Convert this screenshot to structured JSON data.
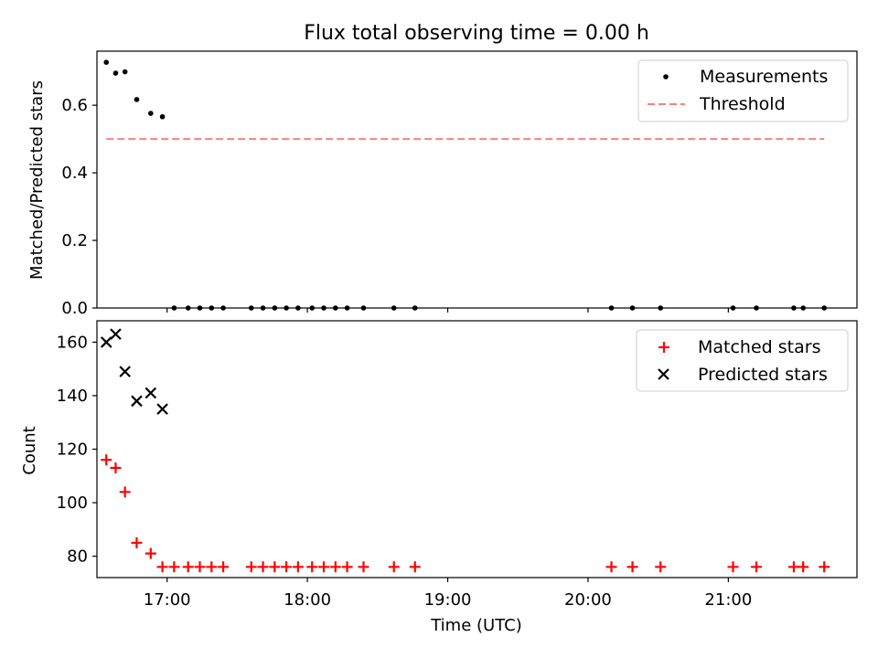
{
  "chart_data": [
    {
      "type": "scatter",
      "title": "Flux total observing time = 0.00 h",
      "xlabel": "",
      "ylabel": "Matched/Predicted stars",
      "xlim": [
        "16:30",
        "21:55"
      ],
      "ylim": [
        0.0,
        0.76
      ],
      "x_ticks": [
        "17:00",
        "18:00",
        "19:00",
        "20:00",
        "21:00"
      ],
      "y_ticks": [
        "0.0",
        "0.2",
        "0.4",
        "0.6"
      ],
      "legend_position": "top-right",
      "legend": [
        "Measurements",
        "Threshold"
      ],
      "series": [
        {
          "name": "Measurements",
          "color": "#000000",
          "marker": "dot",
          "x": [
            "16:34",
            "16:38",
            "16:42",
            "16:47",
            "16:53",
            "16:58",
            "17:03",
            "17:09",
            "17:14",
            "17:19",
            "17:24",
            "17:36",
            "17:41",
            "17:46",
            "17:51",
            "17:56",
            "18:02",
            "18:07",
            "18:12",
            "18:17",
            "18:24",
            "18:37",
            "18:46",
            "20:10",
            "20:19",
            "20:31",
            "21:02",
            "21:12",
            "21:28",
            "21:32",
            "21:41"
          ],
          "y": [
            0.727,
            0.695,
            0.699,
            0.617,
            0.576,
            0.566,
            0,
            0,
            0,
            0,
            0,
            0,
            0,
            0,
            0,
            0,
            0,
            0,
            0,
            0,
            0,
            0,
            0,
            0,
            0,
            0,
            0,
            0,
            0,
            0,
            0
          ]
        },
        {
          "name": "Threshold",
          "color": "#ff7f7f",
          "style": "dashed",
          "x": [
            "16:34",
            "21:41"
          ],
          "y": [
            0.5,
            0.5
          ]
        }
      ]
    },
    {
      "type": "scatter",
      "title": "",
      "xlabel": "Time (UTC)",
      "ylabel": "Count",
      "xlim": [
        "16:30",
        "21:55"
      ],
      "ylim": [
        72,
        168
      ],
      "x_ticks": [
        "17:00",
        "18:00",
        "19:00",
        "20:00",
        "21:00"
      ],
      "y_ticks": [
        "80",
        "100",
        "120",
        "140",
        "160"
      ],
      "legend_position": "top-right",
      "legend": [
        "Matched stars",
        "Predicted stars"
      ],
      "series": [
        {
          "name": "Matched stars",
          "color": "#ff0000",
          "marker": "plus",
          "x": [
            "16:34",
            "16:38",
            "16:42",
            "16:47",
            "16:53",
            "16:58",
            "17:03",
            "17:09",
            "17:14",
            "17:19",
            "17:24",
            "17:36",
            "17:41",
            "17:46",
            "17:51",
            "17:56",
            "18:02",
            "18:07",
            "18:12",
            "18:17",
            "18:24",
            "18:37",
            "18:46",
            "20:10",
            "20:19",
            "20:31",
            "21:02",
            "21:12",
            "21:28",
            "21:32",
            "21:41"
          ],
          "y": [
            116,
            113,
            104,
            85,
            81,
            76,
            76,
            76,
            76,
            76,
            76,
            76,
            76,
            76,
            76,
            76,
            76,
            76,
            76,
            76,
            76,
            76,
            76,
            76,
            76,
            76,
            76,
            76,
            76,
            76,
            76
          ]
        },
        {
          "name": "Predicted stars",
          "color": "#000000",
          "marker": "x",
          "x": [
            "16:34",
            "16:38",
            "16:42",
            "16:47",
            "16:53",
            "16:58"
          ],
          "y": [
            160,
            163,
            149,
            138,
            141,
            135
          ]
        }
      ]
    }
  ]
}
